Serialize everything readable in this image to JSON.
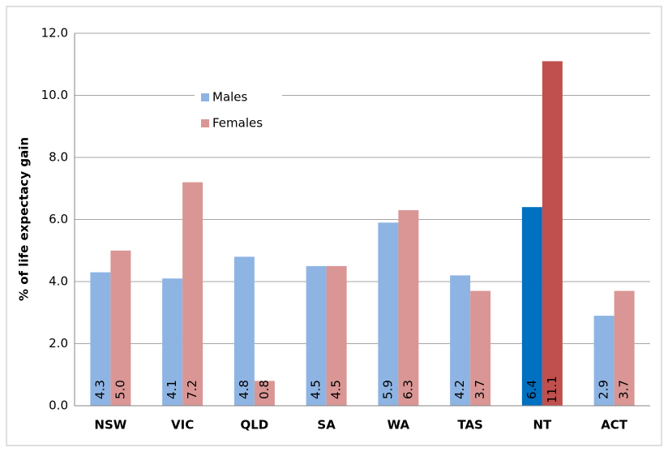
{
  "chart_data": {
    "type": "bar",
    "y_label": "% of life expectacy gain",
    "categories": [
      "NSW",
      "VIC",
      "QLD",
      "SA",
      "WA",
      "TAS",
      "NT",
      "ACT"
    ],
    "series": [
      {
        "name": "Males",
        "color": "#8eb4e3",
        "point_colors": [
          "#8eb4e3",
          "#8eb4e3",
          "#8eb4e3",
          "#8eb4e3",
          "#8eb4e3",
          "#8eb4e3",
          "#0070c0",
          "#8eb4e3"
        ],
        "values": [
          4.3,
          4.1,
          4.8,
          4.5,
          5.9,
          4.2,
          6.4,
          2.9
        ],
        "value_labels": [
          "4.3",
          "4.1",
          "4.8",
          "4.5",
          "5.9",
          "4.2",
          "6.4",
          "2.9"
        ]
      },
      {
        "name": "Females",
        "color": "#d99694",
        "point_colors": [
          "#d99694",
          "#d99694",
          "#d99694",
          "#d99694",
          "#d99694",
          "#d99694",
          "#c0504d",
          "#d99694"
        ],
        "values": [
          5.0,
          7.2,
          0.8,
          4.5,
          6.3,
          3.7,
          11.1,
          3.7
        ],
        "value_labels": [
          "5.0",
          "7.2",
          "0.8",
          "4.5",
          "6.3",
          "3.7",
          "11.1",
          "3.7"
        ]
      }
    ],
    "ylim": [
      0,
      12
    ],
    "yticks": [
      {
        "value": 0,
        "label": "0.0"
      },
      {
        "value": 2,
        "label": "2.0"
      },
      {
        "value": 4,
        "label": "4.0"
      },
      {
        "value": 6,
        "label": "6.0"
      },
      {
        "value": 8,
        "label": "8.0"
      },
      {
        "value": 10,
        "label": "10.0"
      },
      {
        "value": 12,
        "label": "12.0"
      }
    ],
    "grid": true,
    "legend": "upper left"
  }
}
